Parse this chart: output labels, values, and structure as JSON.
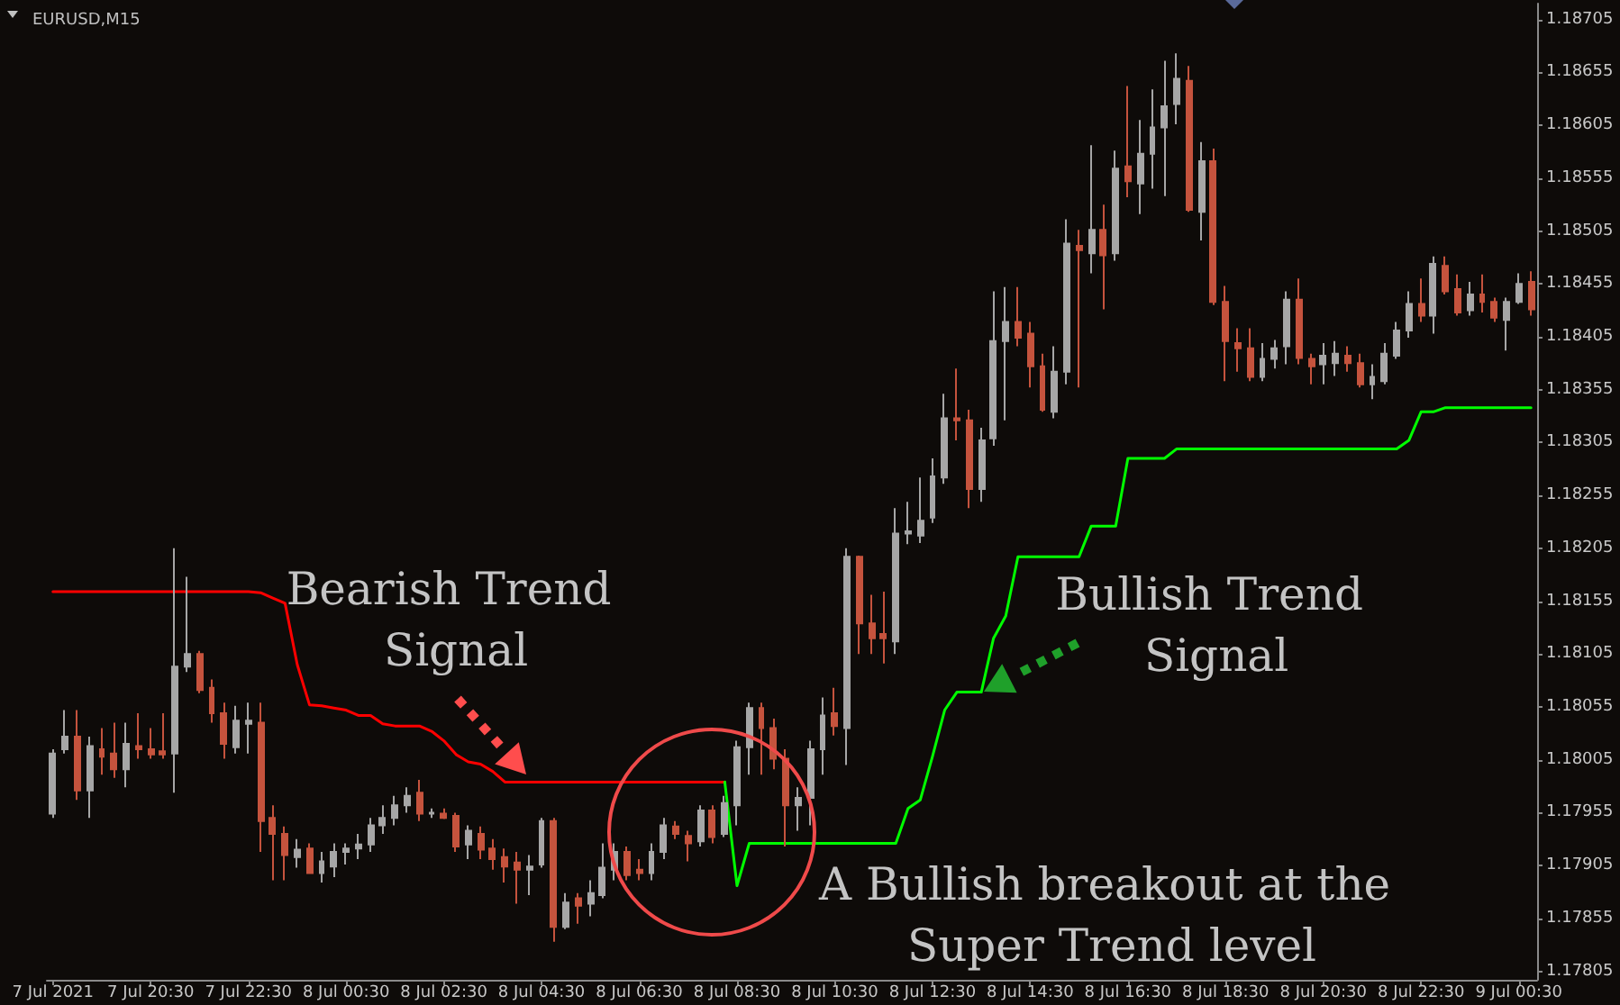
{
  "chart_data": {
    "type": "candlestick",
    "title": "EURUSD,M15",
    "categories": [
      "7 Jul 2021",
      null,
      null,
      null,
      null,
      null,
      null,
      null,
      "7 Jul 20:30",
      null,
      null,
      null,
      null,
      null,
      null,
      null,
      "7 Jul 22:30",
      null,
      null,
      null,
      null,
      null,
      null,
      null,
      "8 Jul 00:30",
      null,
      null,
      null,
      null,
      null,
      null,
      null,
      "8 Jul 02:30",
      null,
      null,
      null,
      null,
      null,
      null,
      null,
      "8 Jul 04:30",
      null,
      null,
      null,
      null,
      null,
      null,
      null,
      "8 Jul 06:30",
      null,
      null,
      null,
      null,
      null,
      null,
      null,
      "8 Jul 08:30",
      null,
      null,
      null,
      null,
      null,
      null,
      null,
      "8 Jul 10:30",
      null,
      null,
      null,
      null,
      null,
      null,
      null,
      "8 Jul 12:30",
      null,
      null,
      null,
      null,
      null,
      null,
      null,
      "8 Jul 14:30",
      null,
      null,
      null,
      null,
      null,
      null,
      null,
      "8 Jul 16:30",
      null,
      null,
      null,
      null,
      null,
      null,
      null,
      "8 Jul 18:30",
      null,
      null,
      null,
      null,
      null,
      null,
      null,
      "8 Jul 20:30",
      null,
      null,
      null,
      null,
      null,
      null,
      null,
      "8 Jul 22:30",
      null,
      null,
      null,
      null,
      null,
      null,
      null,
      "9 Jul 00:30",
      null
    ],
    "ylim": [
      1.17797,
      1.1872
    ],
    "yticks": [
      1.17805,
      1.17855,
      1.17905,
      1.17955,
      1.18005,
      1.18055,
      1.18105,
      1.18155,
      1.18205,
      1.18255,
      1.18305,
      1.18355,
      1.18405,
      1.18455,
      1.18505,
      1.18555,
      1.18605,
      1.18655,
      1.18705
    ],
    "marker": "none",
    "annotations": [
      "Bearish Trend Signal",
      "Bullish Trend Signal",
      "A Bullish breakout at the Super Trend level"
    ],
    "series": [
      {
        "type": "line",
        "color": "#ff0000",
        "values": [
          1.18164,
          1.18164,
          1.18164,
          1.18164,
          1.18164,
          1.18164,
          1.18164,
          1.18164,
          1.18164,
          1.18164,
          1.18164,
          1.18164,
          1.18164,
          1.18164,
          1.18164,
          1.18164,
          1.18164,
          1.18163,
          1.18158,
          1.18153,
          1.18095,
          1.18057,
          1.18056,
          1.18054,
          1.18052,
          1.18047,
          1.18047,
          1.18039,
          1.18037,
          1.18037,
          1.18037,
          1.18032,
          1.18023,
          1.1801,
          1.18003,
          1.18001,
          1.17994,
          1.17984,
          1.17984,
          1.17984,
          1.17984,
          1.17984,
          1.17984,
          1.17984,
          1.17984,
          1.17984,
          1.17984,
          1.17984,
          1.17984,
          1.17984,
          1.17984,
          1.17984,
          1.17984,
          1.17984,
          1.17984,
          1.17984,
          null,
          null,
          null,
          null,
          null,
          null,
          null,
          null,
          null,
          null,
          null,
          null,
          null,
          null,
          null,
          null,
          null,
          null,
          null,
          null,
          null,
          null,
          null,
          null,
          null,
          null,
          null,
          null,
          null,
          null,
          null,
          null,
          null,
          null,
          null,
          null,
          null,
          null,
          null,
          null,
          null,
          null,
          null,
          null,
          null,
          null,
          null,
          null,
          null,
          null,
          null,
          null,
          null,
          null,
          null,
          null,
          null,
          null,
          null,
          null,
          null,
          null,
          null,
          null,
          null,
          null
        ]
      },
      {
        "type": "line",
        "color": "#00ff00",
        "values": [
          null,
          null,
          null,
          null,
          null,
          null,
          null,
          null,
          null,
          null,
          null,
          null,
          null,
          null,
          null,
          null,
          null,
          null,
          null,
          null,
          null,
          null,
          null,
          null,
          null,
          null,
          null,
          null,
          null,
          null,
          null,
          null,
          null,
          null,
          null,
          null,
          null,
          null,
          null,
          null,
          null,
          null,
          null,
          null,
          null,
          null,
          null,
          null,
          null,
          null,
          null,
          null,
          null,
          null,
          null,
          1.17984,
          1.17886,
          1.17926,
          1.17926,
          1.17926,
          1.17926,
          1.17926,
          1.17926,
          1.17926,
          1.17926,
          1.17926,
          1.17926,
          1.17926,
          1.17926,
          1.17926,
          1.17959,
          1.17967,
          1.18008,
          1.18052,
          1.18069,
          1.18069,
          1.18069,
          1.1812,
          1.18141,
          1.18197,
          1.18197,
          1.18197,
          1.18197,
          1.18197,
          1.18197,
          1.18226,
          1.18226,
          1.18226,
          1.1829,
          1.1829,
          1.1829,
          1.1829,
          1.18299,
          1.18299,
          1.18299,
          1.18299,
          1.18299,
          1.18299,
          1.18299,
          1.18299,
          1.18299,
          1.18299,
          1.18299,
          1.18299,
          1.18299,
          1.18299,
          1.18299,
          1.18299,
          1.18299,
          1.18299,
          1.18299,
          1.18307,
          1.18334,
          1.18334,
          1.18338,
          1.18338,
          1.18338,
          1.18338,
          1.18338,
          1.18338,
          1.18338,
          1.18338
        ]
      },
      {
        "type": "candlestick",
        "colors": [
          "#a6a6a6",
          "#a6a6a6",
          "#c5533d",
          "#a6a6a6",
          "#c5533d",
          "#c5533d",
          "#a6a6a6",
          "#c5533d",
          "#c5533d",
          "#c5533d",
          "#a6a6a6",
          "#a6a6a6",
          "#c5533d",
          "#c5533d",
          "#c5533d",
          "#a6a6a6",
          "#a6a6a6",
          "#c5533d",
          "#c5533d",
          "#c5533d",
          "#a6a6a6",
          "#c5533d",
          "#a6a6a6",
          "#a6a6a6",
          "#a6a6a6",
          "#a6a6a6",
          "#a6a6a6",
          "#a6a6a6",
          "#a6a6a6",
          "#a6a6a6",
          "#c5533d",
          "#a6a6a6",
          "#c5533d",
          "#c5533d",
          "#a6a6a6",
          "#c5533d",
          "#c5533d",
          "#c5533d",
          "#c5533d",
          "#a6a6a6",
          "#a6a6a6",
          "#c5533d",
          "#a6a6a6",
          "#c5533d",
          "#a6a6a6",
          "#a6a6a6",
          "#a6a6a6",
          "#c5533d",
          "#c5533d",
          "#a6a6a6",
          "#a6a6a6",
          "#c5533d",
          "#c5533d",
          "#a6a6a6",
          "#c5533d",
          "#a6a6a6",
          "#a6a6a6",
          "#a6a6a6",
          "#c5533d",
          "#c5533d",
          "#c5533d",
          "#a6a6a6",
          "#a6a6a6",
          "#a6a6a6",
          "#c5533d",
          "#a6a6a6",
          "#c5533d",
          "#c5533d",
          "#c5533d",
          "#a6a6a6",
          "#a6a6a6",
          "#a6a6a6",
          "#a6a6a6",
          "#a6a6a6",
          "#c5533d",
          "#c5533d",
          "#a6a6a6",
          "#a6a6a6",
          "#a6a6a6",
          "#c5533d",
          "#c5533d",
          "#c5533d",
          "#a6a6a6",
          "#a6a6a6",
          "#c5533d",
          "#a6a6a6",
          "#c5533d",
          "#a6a6a6",
          "#c5533d",
          "#a6a6a6",
          "#a6a6a6",
          "#a6a6a6",
          "#a6a6a6",
          "#c5533d",
          "#a6a6a6",
          "#c5533d",
          "#c5533d",
          "#c5533d",
          "#c5533d",
          "#a6a6a6",
          "#a6a6a6",
          "#a6a6a6",
          "#c5533d",
          "#c5533d",
          "#a6a6a6",
          "#a6a6a6",
          "#c5533d",
          "#c5533d",
          "#a6a6a6",
          "#a6a6a6",
          "#a6a6a6",
          "#a6a6a6",
          "#c5533d",
          "#a6a6a6",
          "#c5533d",
          "#c5533d",
          "#a6a6a6",
          "#c5533d",
          "#c5533d",
          "#a6a6a6",
          "#a6a6a6",
          "#c5533d"
        ],
        "ohlc": [
          [
            1.17954,
            1.18015,
            1.1795,
            1.18011
          ],
          [
            1.18015,
            1.18052,
            1.18011,
            1.18027
          ],
          [
            1.18027,
            1.18052,
            1.17967,
            1.17976
          ],
          [
            1.17976,
            1.18027,
            1.1795,
            1.18018
          ],
          [
            1.18015,
            1.18035,
            1.17991,
            1.18008
          ],
          [
            1.18011,
            1.1804,
            1.17988,
            1.17996
          ],
          [
            1.17996,
            1.1804,
            1.17979,
            1.1802
          ],
          [
            1.18018,
            1.18049,
            1.18006,
            1.18015
          ],
          [
            1.18015,
            1.18035,
            1.18006,
            1.1801
          ],
          [
            1.18013,
            1.18049,
            1.18006,
            1.1801
          ],
          [
            1.18011,
            1.18205,
            1.17974,
            1.18093
          ],
          [
            1.18093,
            1.18178,
            1.18088,
            1.18105
          ],
          [
            1.18105,
            1.18108,
            1.18068,
            1.18071
          ],
          [
            1.18073,
            1.18081,
            1.1804,
            1.18049
          ],
          [
            1.18049,
            1.18059,
            1.18006,
            1.1802
          ],
          [
            1.18017,
            1.18056,
            1.18011,
            1.18042
          ],
          [
            1.18039,
            1.18059,
            1.18011,
            1.18042
          ],
          [
            1.1804,
            1.18059,
            1.17918,
            1.17947
          ],
          [
            1.1795,
            1.17962,
            1.17891,
            1.17935
          ],
          [
            1.17935,
            1.17942,
            1.17891,
            1.17915
          ],
          [
            1.17913,
            1.1793,
            1.17903,
            1.1792
          ],
          [
            1.17921,
            1.17926,
            1.17898,
            1.17898
          ],
          [
            1.17898,
            1.17918,
            1.17889,
            1.17909
          ],
          [
            1.17904,
            1.17926,
            1.17894,
            1.17918
          ],
          [
            1.17918,
            1.17926,
            1.17906,
            1.17921
          ],
          [
            1.17921,
            1.17935,
            1.17911,
            1.17925
          ],
          [
            1.17925,
            1.1795,
            1.17918,
            1.17943
          ],
          [
            1.17943,
            1.17962,
            1.17935,
            1.1795
          ],
          [
            1.1795,
            1.17971,
            1.17943,
            1.17962
          ],
          [
            1.17962,
            1.17979,
            1.17955,
            1.17971
          ],
          [
            1.17974,
            1.17986,
            1.17947,
            1.17954
          ],
          [
            1.17954,
            1.17959,
            1.1795,
            1.17955
          ],
          [
            1.17954,
            1.17959,
            1.17949,
            1.1795
          ],
          [
            1.17952,
            1.17955,
            1.17918,
            1.17923
          ],
          [
            1.17925,
            1.17943,
            1.17911,
            1.17938
          ],
          [
            1.17935,
            1.17942,
            1.17911,
            1.1792
          ],
          [
            1.17921,
            1.1793,
            1.17901,
            1.17911
          ],
          [
            1.17913,
            1.17921,
            1.17889,
            1.17904
          ],
          [
            1.17908,
            1.17918,
            1.17869,
            1.17901
          ],
          [
            1.17901,
            1.17915,
            1.17877,
            1.17904
          ],
          [
            1.17906,
            1.1795,
            1.17903,
            1.17947
          ],
          [
            1.17947,
            1.1795,
            1.17833,
            1.17847
          ],
          [
            1.17847,
            1.17879,
            1.17845,
            1.1787
          ],
          [
            1.17874,
            1.17879,
            1.1785,
            1.17867
          ],
          [
            1.17869,
            1.17891,
            1.17857,
            1.17879
          ],
          [
            1.17877,
            1.17926,
            1.17874,
            1.17903
          ],
          [
            1.17901,
            1.17926,
            1.17891,
            1.17918
          ],
          [
            1.17918,
            1.17923,
            1.17891,
            1.17896
          ],
          [
            1.17901,
            1.17911,
            1.17891,
            1.17898
          ],
          [
            1.17898,
            1.17926,
            1.17891,
            1.17918
          ],
          [
            1.17918,
            1.1795,
            1.17911,
            1.17943
          ],
          [
            1.17942,
            1.17947,
            1.1793,
            1.17935
          ],
          [
            1.17933,
            1.17938,
            1.17909,
            1.17926
          ],
          [
            1.17928,
            1.17962,
            1.17923,
            1.17957
          ],
          [
            1.17957,
            1.17962,
            1.17926,
            1.17932
          ],
          [
            1.17935,
            1.17971,
            1.17932,
            1.17964
          ],
          [
            1.17962,
            1.18023,
            1.17943,
            1.18017
          ],
          [
            1.18017,
            1.18059,
            1.17991,
            1.18054
          ],
          [
            1.18054,
            1.18059,
            1.17991,
            1.18035
          ],
          [
            1.18035,
            1.18044,
            1.17996,
            1.18006
          ],
          [
            1.18006,
            1.18015,
            1.17923,
            1.17962
          ],
          [
            1.17962,
            1.17979,
            1.17938,
            1.17969
          ],
          [
            1.17969,
            1.18023,
            1.17943,
            1.18015
          ],
          [
            1.18015,
            1.18064,
            1.17991,
            1.18047
          ],
          [
            1.18049,
            1.18073,
            1.18028,
            1.18037
          ],
          [
            1.18035,
            1.18205,
            1.18,
            1.18197
          ],
          [
            1.18197,
            1.18198,
            1.18105,
            1.18134
          ],
          [
            1.18134,
            1.18161,
            1.18105,
            1.1812
          ],
          [
            1.18124,
            1.18164,
            1.18096,
            1.1812
          ],
          [
            1.18117,
            1.18243,
            1.18105,
            1.18219
          ],
          [
            1.18219,
            1.18249,
            1.18209,
            1.18221
          ],
          [
            1.18217,
            1.18272,
            1.1821,
            1.18231
          ],
          [
            1.18234,
            1.1829,
            1.18229,
            1.18273
          ],
          [
            1.18272,
            1.18351,
            1.18266,
            1.18328
          ],
          [
            1.18328,
            1.18375,
            1.18307,
            1.18326
          ],
          [
            1.18326,
            1.18336,
            1.18243,
            1.18261
          ],
          [
            1.18261,
            1.18319,
            1.18249,
            1.18307
          ],
          [
            1.18309,
            1.18448,
            1.18302,
            1.18401
          ],
          [
            1.18401,
            1.18452,
            1.18326,
            1.18419
          ],
          [
            1.18419,
            1.18452,
            1.18396,
            1.18404
          ],
          [
            1.18408,
            1.18419,
            1.18357,
            1.18377
          ],
          [
            1.18377,
            1.18389,
            1.18334,
            1.18336
          ],
          [
            1.18334,
            1.18396,
            1.18328,
            1.18372
          ],
          [
            1.18372,
            1.18516,
            1.1836,
            1.18493
          ],
          [
            1.18491,
            1.18506,
            1.18357,
            1.18487
          ],
          [
            1.18484,
            1.18586,
            1.18465,
            1.18506
          ],
          [
            1.18506,
            1.1853,
            1.18431,
            1.18482
          ],
          [
            1.18484,
            1.18581,
            1.18477,
            1.18564
          ],
          [
            1.18566,
            1.18642,
            1.18537,
            1.18552
          ],
          [
            1.1855,
            1.1861,
            1.18521,
            1.18578
          ],
          [
            1.18578,
            1.18639,
            1.18545,
            1.18603
          ],
          [
            1.18603,
            1.18666,
            1.18538,
            1.18623
          ],
          [
            1.18625,
            1.18673,
            1.18606,
            1.18649
          ],
          [
            1.18647,
            1.18661,
            1.18523,
            1.18525
          ],
          [
            1.18523,
            1.18589,
            1.18496,
            1.18571
          ],
          [
            1.18571,
            1.18583,
            1.18435,
            1.18438
          ],
          [
            1.18438,
            1.18453,
            1.18363,
            1.18401
          ],
          [
            1.18399,
            1.18413,
            1.18372,
            1.18394
          ],
          [
            1.18394,
            1.18413,
            1.18363,
            1.18367
          ],
          [
            1.18367,
            1.18399,
            1.18363,
            1.18384
          ],
          [
            1.18384,
            1.18402,
            1.18375,
            1.18394
          ],
          [
            1.18396,
            1.18448,
            1.18379,
            1.1844
          ],
          [
            1.1844,
            1.1846,
            1.18379,
            1.18385
          ],
          [
            1.18384,
            1.18389,
            1.1836,
            1.18377
          ],
          [
            1.18379,
            1.18399,
            1.1836,
            1.18387
          ],
          [
            1.1838,
            1.18401,
            1.18368,
            1.18389
          ],
          [
            1.18387,
            1.18396,
            1.18372,
            1.1838
          ],
          [
            1.1838,
            1.18389,
            1.18357,
            1.1836
          ],
          [
            1.1836,
            1.18379,
            1.18346,
            1.18367
          ],
          [
            1.18363,
            1.18399,
            1.1836,
            1.18389
          ],
          [
            1.18387,
            1.18419,
            1.18384,
            1.18411
          ],
          [
            1.18411,
            1.18448,
            1.18404,
            1.18436
          ],
          [
            1.18436,
            1.1846,
            1.18419,
            1.18425
          ],
          [
            1.18425,
            1.18481,
            1.18408,
            1.18474
          ],
          [
            1.18472,
            1.18481,
            1.18445,
            1.18448
          ],
          [
            1.1845,
            1.18464,
            1.18425,
            1.18428
          ],
          [
            1.1843,
            1.18457,
            1.18425,
            1.18445
          ],
          [
            1.18445,
            1.18464,
            1.18428,
            1.18438
          ],
          [
            1.18438,
            1.18442,
            1.18419,
            1.18423
          ],
          [
            1.18421,
            1.18442,
            1.18392,
            1.18438
          ],
          [
            1.18438,
            1.18465,
            1.18436,
            1.18455
          ],
          [
            1.18457,
            1.18467,
            1.18425,
            1.18431
          ]
        ]
      }
    ]
  }
}
